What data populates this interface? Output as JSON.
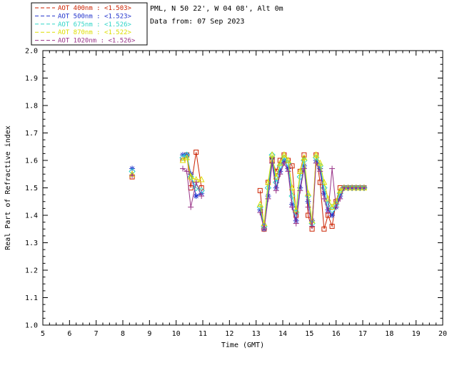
{
  "header": {
    "site": "PML, N 50 22', W 04 08', Alt 0m",
    "date": "Data from: 07 Sep 2023"
  },
  "chart_data": {
    "type": "line",
    "title": "",
    "xlabel": "Time (GMT)",
    "ylabel": "Real Part of Refractive index",
    "xlim": [
      5,
      20
    ],
    "ylim": [
      1.0,
      2.0
    ],
    "xticks": [
      5,
      6,
      7,
      8,
      9,
      10,
      11,
      12,
      13,
      14,
      15,
      16,
      17,
      18,
      19,
      20
    ],
    "yticks": [
      1.0,
      1.1,
      1.2,
      1.3,
      1.4,
      1.5,
      1.6,
      1.7,
      1.8,
      1.9,
      2.0
    ],
    "grid": false,
    "legend_position": "top-left",
    "frame_color": "#000000",
    "series": [
      {
        "name": "AOT 400nm",
        "legend_label": "AOT  400nm : <1.503>",
        "mean": "<1.503>",
        "color": "#cc2200",
        "marker": "square",
        "points": [
          [
            8.35,
            1.54
          ],
          [
            10.25,
            1.6
          ],
          [
            10.4,
            1.62
          ],
          [
            10.55,
            1.5
          ],
          [
            10.75,
            1.63
          ],
          [
            10.95,
            1.5
          ],
          [
            13.15,
            1.49
          ],
          [
            13.3,
            1.35
          ],
          [
            13.45,
            1.52
          ],
          [
            13.6,
            1.6
          ],
          [
            13.75,
            1.56
          ],
          [
            13.9,
            1.6
          ],
          [
            14.05,
            1.62
          ],
          [
            14.2,
            1.6
          ],
          [
            14.35,
            1.58
          ],
          [
            14.5,
            1.4
          ],
          [
            14.65,
            1.56
          ],
          [
            14.8,
            1.62
          ],
          [
            14.95,
            1.4
          ],
          [
            15.1,
            1.35
          ],
          [
            15.25,
            1.62
          ],
          [
            15.4,
            1.52
          ],
          [
            15.55,
            1.35
          ],
          [
            15.7,
            1.4
          ],
          [
            15.85,
            1.36
          ],
          [
            16.0,
            1.45
          ],
          [
            16.15,
            1.5
          ],
          [
            16.3,
            1.5
          ],
          [
            16.45,
            1.5
          ],
          [
            16.6,
            1.5
          ],
          [
            16.75,
            1.5
          ],
          [
            16.9,
            1.5
          ],
          [
            17.05,
            1.5
          ]
        ]
      },
      {
        "name": "AOT 500nm",
        "legend_label": "AOT  500nm : <1.523>",
        "mean": "<1.523>",
        "color": "#2233cc",
        "marker": "asterisk",
        "points": [
          [
            8.35,
            1.57
          ],
          [
            10.25,
            1.62
          ],
          [
            10.4,
            1.62
          ],
          [
            10.55,
            1.55
          ],
          [
            10.75,
            1.47
          ],
          [
            10.95,
            1.48
          ],
          [
            13.15,
            1.42
          ],
          [
            13.3,
            1.35
          ],
          [
            13.45,
            1.47
          ],
          [
            13.6,
            1.61
          ],
          [
            13.75,
            1.5
          ],
          [
            13.9,
            1.56
          ],
          [
            14.05,
            1.6
          ],
          [
            14.2,
            1.57
          ],
          [
            14.35,
            1.44
          ],
          [
            14.5,
            1.38
          ],
          [
            14.65,
            1.5
          ],
          [
            14.8,
            1.58
          ],
          [
            14.95,
            1.45
          ],
          [
            15.1,
            1.38
          ],
          [
            15.25,
            1.6
          ],
          [
            15.4,
            1.57
          ],
          [
            15.55,
            1.48
          ],
          [
            15.7,
            1.42
          ],
          [
            15.85,
            1.4
          ],
          [
            16.0,
            1.43
          ],
          [
            16.15,
            1.47
          ],
          [
            16.3,
            1.5
          ],
          [
            16.45,
            1.5
          ],
          [
            16.6,
            1.5
          ],
          [
            16.75,
            1.5
          ],
          [
            16.9,
            1.5
          ],
          [
            17.05,
            1.5
          ]
        ]
      },
      {
        "name": "AOT 675nm",
        "legend_label": "AOT  675nm : <1.526>",
        "mean": "<1.526>",
        "color": "#30d5c8",
        "marker": "diamond",
        "points": [
          [
            8.35,
            1.56
          ],
          [
            10.25,
            1.61
          ],
          [
            10.4,
            1.62
          ],
          [
            10.55,
            1.54
          ],
          [
            10.75,
            1.5
          ],
          [
            10.95,
            1.49
          ],
          [
            13.15,
            1.43
          ],
          [
            13.3,
            1.36
          ],
          [
            13.45,
            1.5
          ],
          [
            13.6,
            1.62
          ],
          [
            13.75,
            1.52
          ],
          [
            13.9,
            1.58
          ],
          [
            14.05,
            1.61
          ],
          [
            14.2,
            1.59
          ],
          [
            14.35,
            1.47
          ],
          [
            14.5,
            1.41
          ],
          [
            14.65,
            1.54
          ],
          [
            14.8,
            1.6
          ],
          [
            14.95,
            1.47
          ],
          [
            15.1,
            1.37
          ],
          [
            15.25,
            1.61
          ],
          [
            15.4,
            1.58
          ],
          [
            15.55,
            1.5
          ],
          [
            15.7,
            1.44
          ],
          [
            15.85,
            1.42
          ],
          [
            16.0,
            1.44
          ],
          [
            16.15,
            1.48
          ],
          [
            16.3,
            1.5
          ],
          [
            16.45,
            1.5
          ],
          [
            16.6,
            1.5
          ],
          [
            16.75,
            1.5
          ],
          [
            16.9,
            1.5
          ],
          [
            17.05,
            1.5
          ]
        ]
      },
      {
        "name": "AOT 870nm",
        "legend_label": "AOT  870nm : <1.522>",
        "mean": "<1.522>",
        "color": "#dddd00",
        "marker": "triangle",
        "points": [
          [
            8.35,
            1.55
          ],
          [
            10.25,
            1.6
          ],
          [
            10.4,
            1.61
          ],
          [
            10.55,
            1.54
          ],
          [
            10.75,
            1.53
          ],
          [
            10.95,
            1.53
          ],
          [
            13.15,
            1.44
          ],
          [
            13.3,
            1.37
          ],
          [
            13.45,
            1.52
          ],
          [
            13.6,
            1.62
          ],
          [
            13.75,
            1.54
          ],
          [
            13.9,
            1.59
          ],
          [
            14.05,
            1.62
          ],
          [
            14.2,
            1.6
          ],
          [
            14.35,
            1.5
          ],
          [
            14.5,
            1.42
          ],
          [
            14.65,
            1.56
          ],
          [
            14.8,
            1.61
          ],
          [
            14.95,
            1.48
          ],
          [
            15.1,
            1.38
          ],
          [
            15.25,
            1.62
          ],
          [
            15.4,
            1.59
          ],
          [
            15.55,
            1.52
          ],
          [
            15.7,
            1.46
          ],
          [
            15.85,
            1.43
          ],
          [
            16.0,
            1.45
          ],
          [
            16.15,
            1.49
          ],
          [
            16.3,
            1.5
          ],
          [
            16.45,
            1.5
          ],
          [
            16.6,
            1.5
          ],
          [
            16.75,
            1.5
          ],
          [
            16.9,
            1.5
          ],
          [
            17.05,
            1.5
          ]
        ]
      },
      {
        "name": "AOT 1020nm",
        "legend_label": "AOT 1020nm : <1.526>",
        "mean": "<1.526>",
        "color": "#993388",
        "marker": "plus",
        "points": [
          [
            8.35,
            1.545
          ],
          [
            10.25,
            1.57
          ],
          [
            10.4,
            1.56
          ],
          [
            10.55,
            1.43
          ],
          [
            10.75,
            1.52
          ],
          [
            10.95,
            1.47
          ],
          [
            13.15,
            1.41
          ],
          [
            13.3,
            1.35
          ],
          [
            13.45,
            1.46
          ],
          [
            13.6,
            1.59
          ],
          [
            13.75,
            1.49
          ],
          [
            13.9,
            1.55
          ],
          [
            14.05,
            1.59
          ],
          [
            14.2,
            1.56
          ],
          [
            14.35,
            1.43
          ],
          [
            14.5,
            1.37
          ],
          [
            14.65,
            1.49
          ],
          [
            14.8,
            1.57
          ],
          [
            14.95,
            1.43
          ],
          [
            15.1,
            1.36
          ],
          [
            15.25,
            1.59
          ],
          [
            15.4,
            1.56
          ],
          [
            15.55,
            1.46
          ],
          [
            15.7,
            1.41
          ],
          [
            15.85,
            1.57
          ],
          [
            16.0,
            1.43
          ],
          [
            16.15,
            1.46
          ],
          [
            16.3,
            1.5
          ],
          [
            16.45,
            1.5
          ],
          [
            16.6,
            1.5
          ],
          [
            16.75,
            1.5
          ],
          [
            16.9,
            1.5
          ],
          [
            17.05,
            1.5
          ]
        ]
      }
    ]
  }
}
